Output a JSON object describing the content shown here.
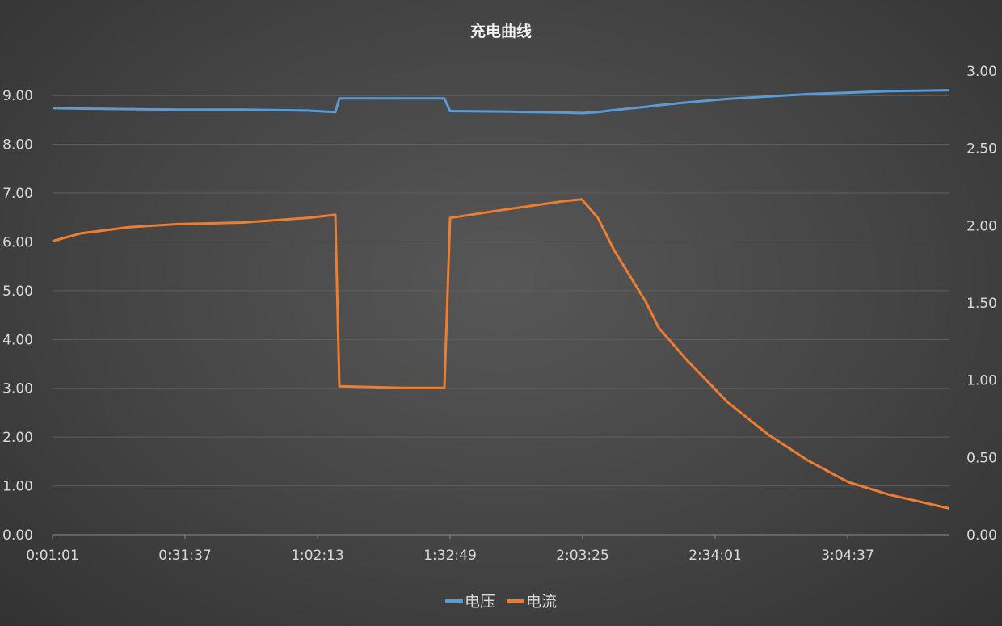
{
  "chart_data": {
    "type": "line",
    "title": "充电曲线",
    "xlabel": "",
    "x_tick_labels": [
      "0:01:01",
      "0:31:37",
      "1:02:13",
      "1:32:49",
      "2:03:25",
      "2:34:01",
      "3:04:37"
    ],
    "y_left": {
      "ylim": [
        0,
        9.5
      ],
      "ticks": [
        "0.00",
        "1.00",
        "2.00",
        "3.00",
        "4.00",
        "5.00",
        "6.00",
        "7.00",
        "8.00",
        "9.00"
      ]
    },
    "y_right": {
      "ylim": [
        0,
        3
      ],
      "ticks": [
        "0.00",
        "0.50",
        "1.00",
        "1.50",
        "2.00",
        "2.50",
        "3.00"
      ]
    },
    "grid": true,
    "legend_position": "bottom",
    "x": [
      "0:01:01",
      "0:07:33",
      "0:18:44",
      "0:29:56",
      "0:44:52",
      "0:59:47",
      "1:06:19",
      "1:07:15",
      "1:22:11",
      "1:31:31",
      "1:32:49",
      "1:44:34",
      "1:59:30",
      "2:03:14",
      "2:06:58",
      "2:10:42",
      "2:18:09",
      "2:20:57",
      "2:27:29",
      "2:36:49",
      "2:46:09",
      "2:55:28",
      "3:04:48",
      "3:14:08",
      "3:28:07"
    ],
    "series": [
      {
        "name": "电压",
        "axis": "left",
        "color": "#5b9bd5",
        "values": [
          8.74,
          8.73,
          8.72,
          8.71,
          8.71,
          8.69,
          8.66,
          8.94,
          8.94,
          8.94,
          8.68,
          8.67,
          8.65,
          8.64,
          8.66,
          8.7,
          8.77,
          8.8,
          8.86,
          8.93,
          8.98,
          9.03,
          9.06,
          9.09,
          9.11
        ]
      },
      {
        "name": "电流",
        "axis": "right",
        "color": "#ed7d31",
        "values": [
          1.9,
          1.95,
          1.99,
          2.01,
          2.02,
          2.05,
          2.07,
          0.96,
          0.95,
          0.95,
          2.05,
          2.1,
          2.16,
          2.17,
          2.05,
          1.84,
          1.5,
          1.34,
          1.13,
          0.86,
          0.65,
          0.48,
          0.34,
          0.26,
          0.17
        ]
      }
    ]
  }
}
